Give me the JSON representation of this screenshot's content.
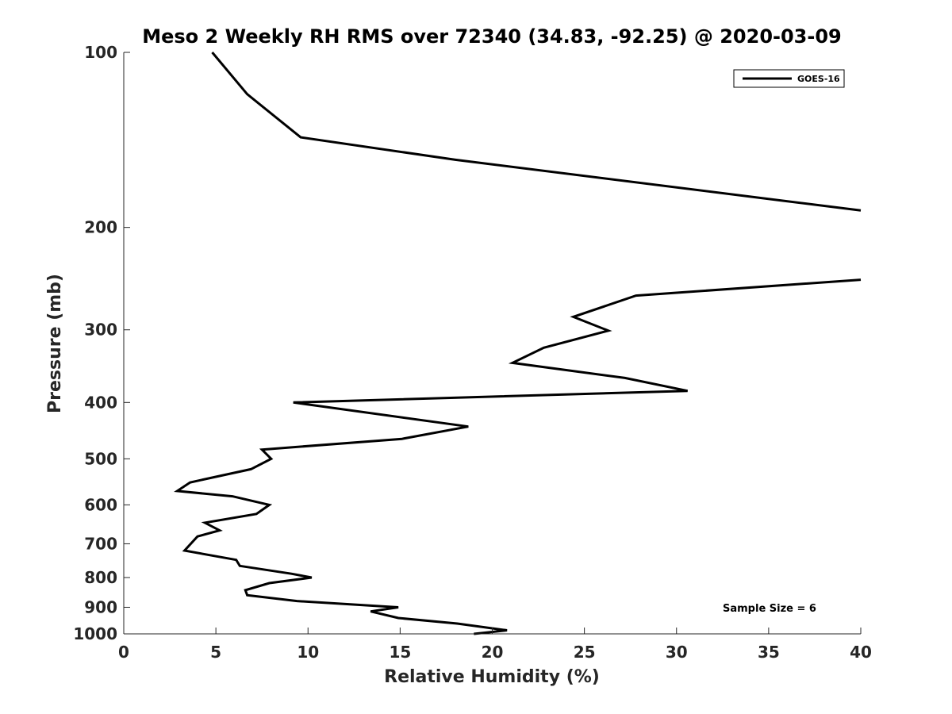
{
  "chart_data": {
    "type": "line",
    "title": "Meso 2 Weekly RH RMS over 72340 (34.83, -92.25) @ 2020-03-09",
    "xlabel": "Relative Humidity (%)",
    "ylabel": "Pressure (mb)",
    "xlim": [
      0,
      40
    ],
    "ylim": [
      100,
      1000
    ],
    "yscale": "log",
    "y_reversed": true,
    "grid": false,
    "legend_position": "top-right",
    "x_ticks": [
      "0",
      "5",
      "10",
      "15",
      "20",
      "25",
      "30",
      "35",
      "40"
    ],
    "y_ticks": [
      "100",
      "200",
      "300",
      "400",
      "500",
      "600",
      "700",
      "800",
      "900",
      "1000"
    ],
    "annotation": "Sample Size = 6",
    "series": [
      {
        "name": "GOES-16",
        "color": "#000000",
        "segments": [
          [
            {
              "x": 4.8,
              "y": 100
            },
            {
              "x": 6.7,
              "y": 118
            },
            {
              "x": 9.6,
              "y": 140
            },
            {
              "x": 18.0,
              "y": 153
            },
            {
              "x": 40.0,
              "y": 187
            }
          ],
          [
            {
              "x": 40.0,
              "y": 246
            },
            {
              "x": 27.8,
              "y": 262
            },
            {
              "x": 24.4,
              "y": 285
            },
            {
              "x": 26.3,
              "y": 301
            },
            {
              "x": 22.8,
              "y": 322
            },
            {
              "x": 21.1,
              "y": 342
            },
            {
              "x": 27.2,
              "y": 363
            },
            {
              "x": 30.6,
              "y": 382
            },
            {
              "x": 9.2,
              "y": 400
            },
            {
              "x": 18.7,
              "y": 440
            },
            {
              "x": 15.1,
              "y": 462
            },
            {
              "x": 7.5,
              "y": 482
            },
            {
              "x": 8.0,
              "y": 500
            },
            {
              "x": 6.9,
              "y": 521
            },
            {
              "x": 3.6,
              "y": 549
            },
            {
              "x": 2.9,
              "y": 568
            },
            {
              "x": 5.9,
              "y": 580
            },
            {
              "x": 7.9,
              "y": 600
            },
            {
              "x": 7.2,
              "y": 622
            },
            {
              "x": 4.4,
              "y": 644
            },
            {
              "x": 5.2,
              "y": 664
            },
            {
              "x": 4.0,
              "y": 680
            },
            {
              "x": 3.3,
              "y": 719
            },
            {
              "x": 6.1,
              "y": 746
            },
            {
              "x": 6.3,
              "y": 764
            },
            {
              "x": 9.1,
              "y": 788
            },
            {
              "x": 10.2,
              "y": 800
            },
            {
              "x": 7.9,
              "y": 818
            },
            {
              "x": 6.6,
              "y": 841
            },
            {
              "x": 6.7,
              "y": 858
            },
            {
              "x": 9.4,
              "y": 878
            },
            {
              "x": 14.9,
              "y": 900
            },
            {
              "x": 13.4,
              "y": 915
            },
            {
              "x": 14.9,
              "y": 939
            },
            {
              "x": 18.1,
              "y": 960
            },
            {
              "x": 20.8,
              "y": 986
            },
            {
              "x": 19.0,
              "y": 1000
            }
          ]
        ]
      }
    ]
  }
}
